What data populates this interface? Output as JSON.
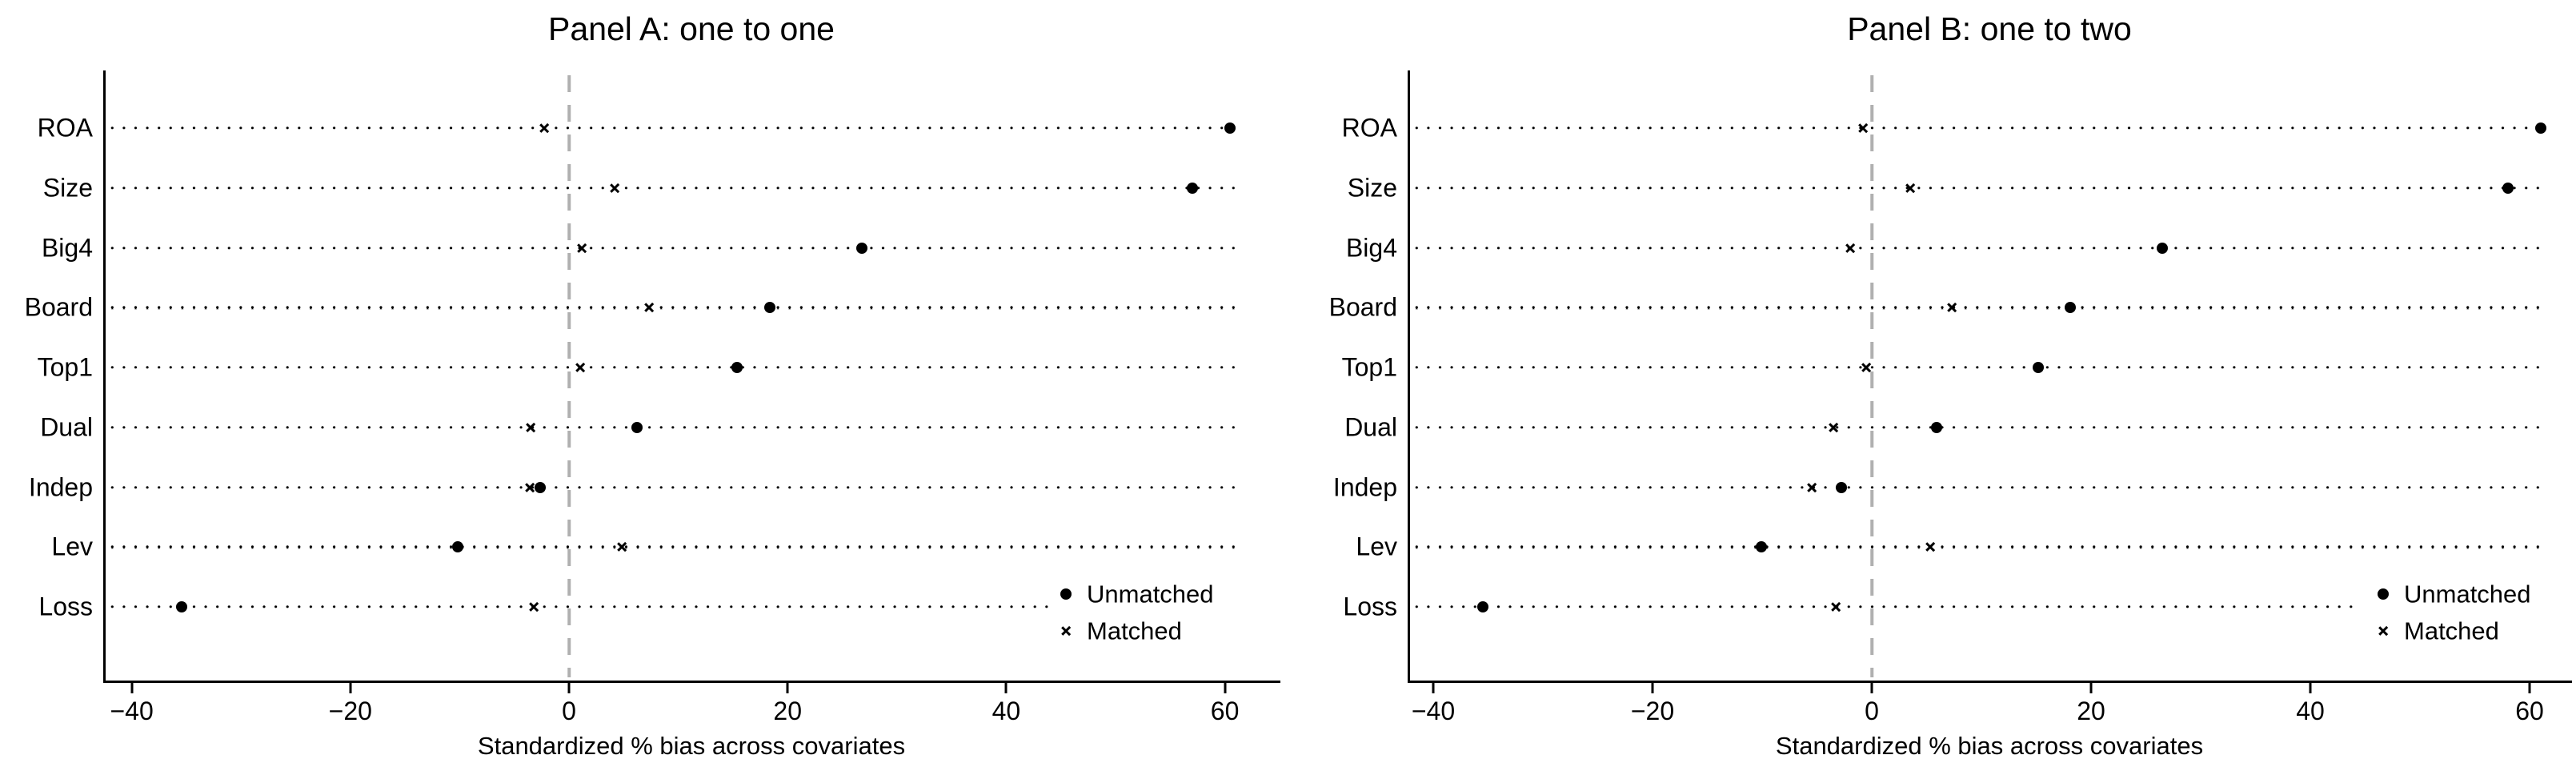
{
  "figure": {
    "background_color": "#ffffff",
    "text_color": "#000000",
    "axis_color": "#000000",
    "zero_reference_line_color": "#b0b0b0",
    "marker_color": "#000000"
  },
  "chart_data": [
    {
      "type": "scatter",
      "panel_id": "A",
      "title": "Panel A: one to one",
      "xlabel": "Standardized % bias across covariates",
      "categories": [
        "ROA",
        "Size",
        "Big4",
        "Board",
        "Top1",
        "Dual",
        "Indep",
        "Lev",
        "Loss"
      ],
      "series": [
        {
          "name": "Unmatched",
          "marker": "circle",
          "values": [
            60.5,
            57.0,
            26.8,
            18.4,
            15.4,
            6.2,
            -2.6,
            -10.2,
            -35.4
          ]
        },
        {
          "name": "Matched",
          "marker": "x",
          "values": [
            -2.3,
            4.2,
            1.2,
            7.3,
            1.0,
            -3.5,
            -3.6,
            4.8,
            -3.2
          ]
        }
      ],
      "xticks": [
        -40,
        -20,
        0,
        20,
        40,
        60
      ],
      "xtick_labels": [
        "−40",
        "−20",
        "0",
        "20",
        "40",
        "60"
      ],
      "xlim": [
        -43,
        62
      ],
      "reference_line_x": 0,
      "grid": "dotted-horizontal",
      "legend_position": "bottom-right",
      "legend_entries": [
        "Unmatched",
        "Matched"
      ]
    },
    {
      "type": "scatter",
      "panel_id": "B",
      "title": "Panel B: one to two",
      "xlabel": "Standardized % bias across covariates",
      "categories": [
        "ROA",
        "Size",
        "Big4",
        "Board",
        "Top1",
        "Dual",
        "Indep",
        "Lev",
        "Loss"
      ],
      "series": [
        {
          "name": "Unmatched",
          "marker": "circle",
          "values": [
            61.0,
            58.0,
            26.5,
            18.1,
            15.2,
            5.9,
            -2.8,
            -10.1,
            -35.5
          ]
        },
        {
          "name": "Matched",
          "marker": "x",
          "values": [
            -0.8,
            3.5,
            -2.0,
            7.3,
            -0.5,
            -3.5,
            -5.5,
            5.3,
            -3.3
          ]
        }
      ],
      "xticks": [
        -40,
        -20,
        0,
        20,
        40,
        60
      ],
      "xtick_labels": [
        "−40",
        "−20",
        "0",
        "20",
        "40",
        "60"
      ],
      "xlim": [
        -43,
        62
      ],
      "reference_line_x": 0,
      "grid": "dotted-horizontal",
      "legend_position": "bottom-right",
      "legend_entries": [
        "Unmatched",
        "Matched"
      ]
    }
  ]
}
